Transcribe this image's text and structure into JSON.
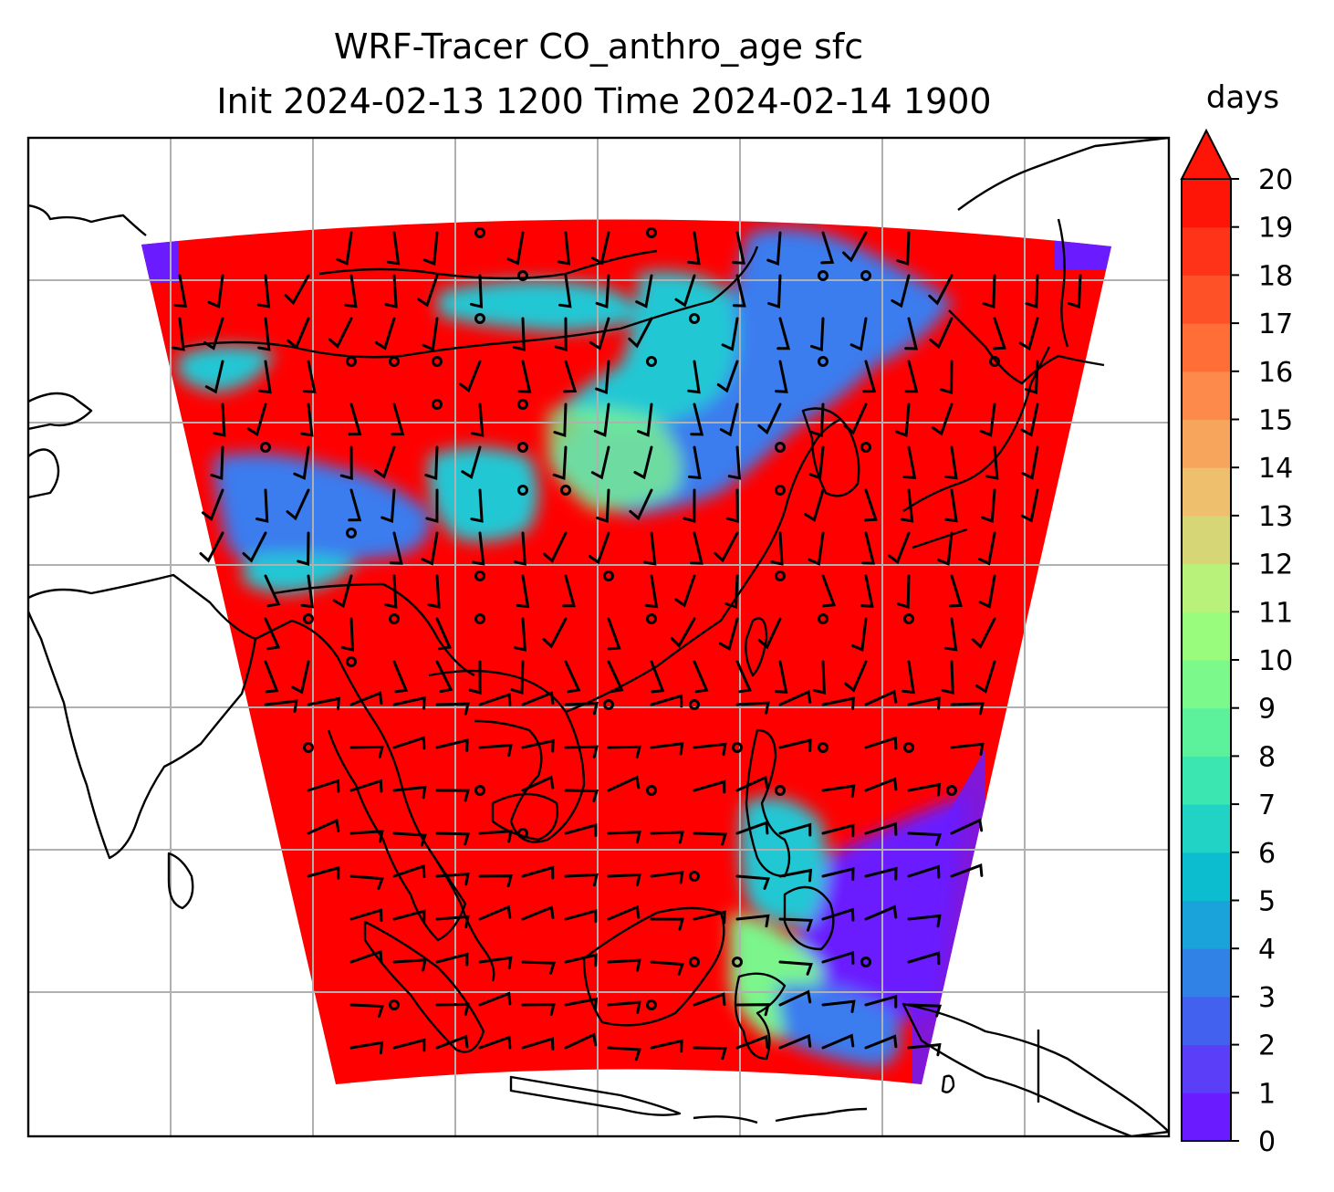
{
  "title": {
    "line1": "WRF-Tracer CO_anthro_age sfc",
    "line2": "Init 2024-02-13 1200 Time 2024-02-14 1900"
  },
  "colorbar": {
    "label": "days",
    "ticks": [
      "0",
      "1",
      "2",
      "3",
      "4",
      "5",
      "6",
      "7",
      "8",
      "9",
      "10",
      "11",
      "12",
      "13",
      "14",
      "15",
      "16",
      "17",
      "18",
      "19",
      "20"
    ],
    "colors": [
      "#6a1bff",
      "#5b3ef8",
      "#4361ef",
      "#3182e6",
      "#1aa3db",
      "#0cbdd0",
      "#21d3c4",
      "#3ce6b0",
      "#5cf29c",
      "#7bf98b",
      "#9afc7d",
      "#b9f27a",
      "#d6d676",
      "#eec06d",
      "#f7a45c",
      "#fd8a4a",
      "#ff6e37",
      "#ff5127",
      "#ff3317",
      "#ff1408"
    ],
    "extend": "max",
    "range": [
      0,
      20
    ]
  },
  "map": {
    "field": "CO_anthro_age",
    "level": "sfc",
    "units": "days",
    "domain_fill": "#ff0000",
    "young_air_colors": [
      "#6a1bff",
      "#3a7bef",
      "#24c7d4",
      "#7cf58c"
    ],
    "gridlines": true
  }
}
